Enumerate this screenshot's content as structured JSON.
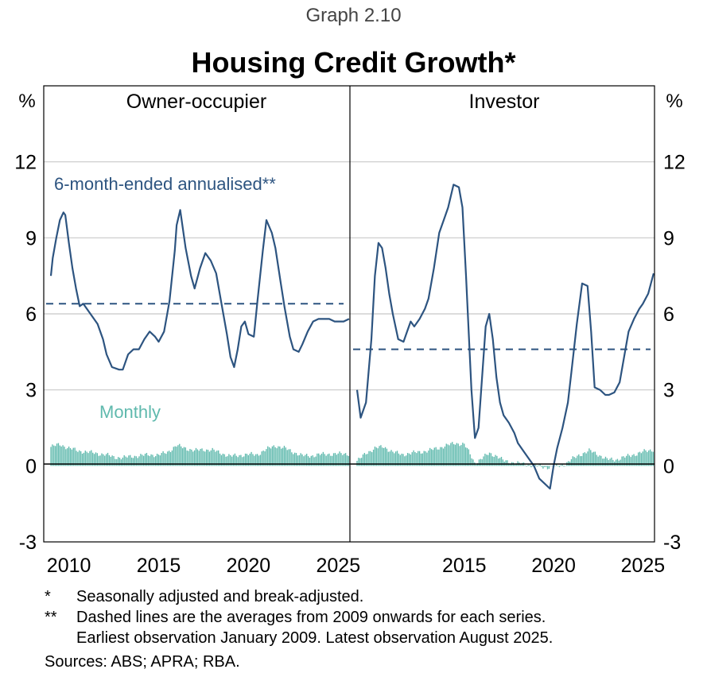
{
  "graph_number": "Graph 2.10",
  "title": "Housing Credit Growth*",
  "notes": [
    {
      "mark": "*",
      "lines": [
        "Seasonally adjusted and break-adjusted."
      ]
    },
    {
      "mark": "**",
      "lines": [
        "Dashed lines are the averages from 2009 onwards for each series.",
        "Earliest observation January 2009. Latest observation August 2025."
      ]
    }
  ],
  "sources": "Sources: ABS; APRA; RBA.",
  "colors": {
    "six_month_line": "#2d5480",
    "monthly_bars": "#5fb9ad",
    "monthly_bars_stroke": "#47a89b",
    "gridline": "#c8c8c8",
    "axis": "#000000"
  },
  "chart_data": [
    {
      "type": "line",
      "panel": "Owner-occupier",
      "y_unit_label": "%",
      "ylim": [
        -3,
        15
      ],
      "yticks": [
        "-3",
        "0",
        "3",
        "6",
        "9",
        "12"
      ],
      "xlim": [
        2008.6,
        2025.65
      ],
      "xticks": [
        "2010",
        "2015",
        "2020",
        "2025"
      ],
      "series": [
        {
          "name": "6-month-ended annualised**",
          "style": "solid",
          "x": [
            2009.0,
            2009.1,
            2009.3,
            2009.5,
            2009.7,
            2009.8,
            2010.0,
            2010.2,
            2010.4,
            2010.6,
            2010.8,
            2011.0,
            2011.3,
            2011.6,
            2011.9,
            2012.1,
            2012.4,
            2012.8,
            2013.0,
            2013.3,
            2013.6,
            2013.9,
            2014.2,
            2014.5,
            2014.8,
            2015.0,
            2015.3,
            2015.6,
            2015.9,
            2016.0,
            2016.2,
            2016.5,
            2016.8,
            2017.0,
            2017.3,
            2017.6,
            2017.9,
            2018.2,
            2018.5,
            2018.8,
            2019.0,
            2019.2,
            2019.4,
            2019.6,
            2019.8,
            2020.0,
            2020.3,
            2020.5,
            2020.8,
            2021.0,
            2021.3,
            2021.5,
            2021.8,
            2022.0,
            2022.3,
            2022.5,
            2022.8,
            2023.0,
            2023.3,
            2023.6,
            2023.9,
            2024.2,
            2024.5,
            2024.8,
            2025.0,
            2025.3,
            2025.6
          ],
          "values": [
            7.5,
            8.2,
            9.0,
            9.7,
            10.0,
            9.9,
            8.8,
            7.8,
            7.0,
            6.3,
            6.4,
            6.2,
            5.9,
            5.6,
            5.0,
            4.4,
            3.9,
            3.8,
            3.8,
            4.4,
            4.6,
            4.6,
            5.0,
            5.3,
            5.1,
            4.9,
            5.3,
            6.5,
            8.5,
            9.5,
            10.1,
            8.6,
            7.5,
            7.0,
            7.8,
            8.4,
            8.1,
            7.6,
            6.4,
            5.2,
            4.3,
            3.9,
            4.6,
            5.5,
            5.7,
            5.2,
            5.1,
            6.5,
            8.5,
            9.7,
            9.2,
            8.6,
            7.2,
            6.3,
            5.1,
            4.6,
            4.5,
            4.8,
            5.3,
            5.7,
            5.8,
            5.8,
            5.8,
            5.7,
            5.7,
            5.7,
            5.8
          ]
        },
        {
          "name": "6-month-ended average (2009 onwards)",
          "style": "dashed",
          "value": 6.4
        },
        {
          "name": "Monthly",
          "type": "bar",
          "anchors_x": [
            2009.0,
            2009.5,
            2010.0,
            2010.5,
            2011.0,
            2011.5,
            2012.0,
            2012.5,
            2013.0,
            2013.5,
            2014.0,
            2014.5,
            2015.0,
            2015.5,
            2016.0,
            2016.5,
            2017.0,
            2017.5,
            2018.0,
            2018.5,
            2019.0,
            2019.5,
            2020.0,
            2020.5,
            2021.0,
            2021.5,
            2022.0,
            2022.5,
            2023.0,
            2023.5,
            2024.0,
            2024.5,
            2025.0,
            2025.6
          ],
          "anchors_values": [
            0.75,
            0.85,
            0.7,
            0.6,
            0.55,
            0.5,
            0.45,
            0.35,
            0.32,
            0.38,
            0.4,
            0.45,
            0.42,
            0.55,
            0.8,
            0.7,
            0.6,
            0.65,
            0.62,
            0.5,
            0.38,
            0.42,
            0.45,
            0.45,
            0.65,
            0.8,
            0.7,
            0.55,
            0.4,
            0.4,
            0.45,
            0.47,
            0.47,
            0.48
          ],
          "bar_step": 0.0833
        }
      ],
      "annotations": [
        "6-month-ended annualised**",
        "Monthly"
      ]
    },
    {
      "type": "line",
      "panel": "Investor",
      "y_unit_label": "%",
      "ylim": [
        -3,
        15
      ],
      "yticks": [
        "-3",
        "0",
        "3",
        "6",
        "9",
        "12"
      ],
      "xlim": [
        2008.6,
        2025.65
      ],
      "xticks": [
        "2015",
        "2020",
        "2025"
      ],
      "series": [
        {
          "name": "6-month-ended annualised**",
          "style": "solid",
          "x": [
            2009.0,
            2009.2,
            2009.5,
            2009.8,
            2010.0,
            2010.2,
            2010.4,
            2010.6,
            2010.8,
            2011.0,
            2011.3,
            2011.6,
            2011.8,
            2012.0,
            2012.2,
            2012.5,
            2012.8,
            2013.0,
            2013.3,
            2013.6,
            2013.9,
            2014.1,
            2014.4,
            2014.7,
            2014.9,
            2015.1,
            2015.4,
            2015.6,
            2015.8,
            2016.0,
            2016.2,
            2016.4,
            2016.6,
            2016.8,
            2017.0,
            2017.2,
            2017.5,
            2017.8,
            2018.0,
            2018.3,
            2018.6,
            2018.9,
            2019.2,
            2019.5,
            2019.8,
            2020.0,
            2020.2,
            2020.5,
            2020.8,
            2021.0,
            2021.3,
            2021.6,
            2021.9,
            2022.1,
            2022.3,
            2022.6,
            2022.9,
            2023.1,
            2023.4,
            2023.7,
            2024.0,
            2024.2,
            2024.5,
            2024.8,
            2025.0,
            2025.3,
            2025.6
          ],
          "values": [
            3.0,
            1.9,
            2.5,
            5.0,
            7.5,
            8.8,
            8.6,
            7.8,
            6.8,
            6.0,
            5.0,
            4.9,
            5.3,
            5.7,
            5.5,
            5.8,
            6.2,
            6.6,
            7.8,
            9.2,
            9.8,
            10.2,
            11.1,
            11.0,
            10.2,
            7.5,
            3.0,
            1.1,
            1.5,
            3.5,
            5.5,
            6.0,
            5.0,
            3.5,
            2.5,
            2.0,
            1.7,
            1.3,
            0.9,
            0.6,
            0.3,
            0.0,
            -0.5,
            -0.7,
            -0.9,
            0.0,
            0.7,
            1.5,
            2.5,
            3.7,
            5.6,
            7.2,
            7.1,
            5.3,
            3.1,
            3.0,
            2.8,
            2.8,
            2.9,
            3.3,
            4.5,
            5.3,
            5.8,
            6.2,
            6.4,
            6.8,
            7.6
          ]
        },
        {
          "name": "6-month-ended average (2009 onwards)",
          "style": "dashed",
          "value": 4.6
        },
        {
          "name": "Monthly",
          "type": "bar",
          "anchors_x": [
            2009.0,
            2009.2,
            2009.5,
            2010.0,
            2010.5,
            2011.0,
            2011.5,
            2012.0,
            2012.5,
            2013.0,
            2013.5,
            2014.0,
            2014.5,
            2015.0,
            2015.3,
            2015.6,
            2016.0,
            2016.4,
            2016.8,
            2017.2,
            2017.6,
            2018.0,
            2018.5,
            2019.0,
            2019.5,
            2020.0,
            2020.3,
            2020.6,
            2021.0,
            2021.5,
            2022.0,
            2022.5,
            2023.0,
            2023.5,
            2024.0,
            2024.5,
            2025.0,
            2025.6
          ],
          "anchors_values": [
            0.2,
            0.3,
            0.5,
            0.7,
            0.75,
            0.55,
            0.45,
            0.5,
            0.55,
            0.6,
            0.7,
            0.8,
            0.9,
            0.85,
            0.5,
            0.1,
            0.3,
            0.5,
            0.4,
            0.2,
            0.15,
            0.1,
            0.05,
            0.0,
            -0.05,
            -0.05,
            0.0,
            0.05,
            0.25,
            0.45,
            0.6,
            0.45,
            0.25,
            0.25,
            0.35,
            0.45,
            0.55,
            0.65
          ],
          "bar_step": 0.0833
        }
      ]
    }
  ]
}
